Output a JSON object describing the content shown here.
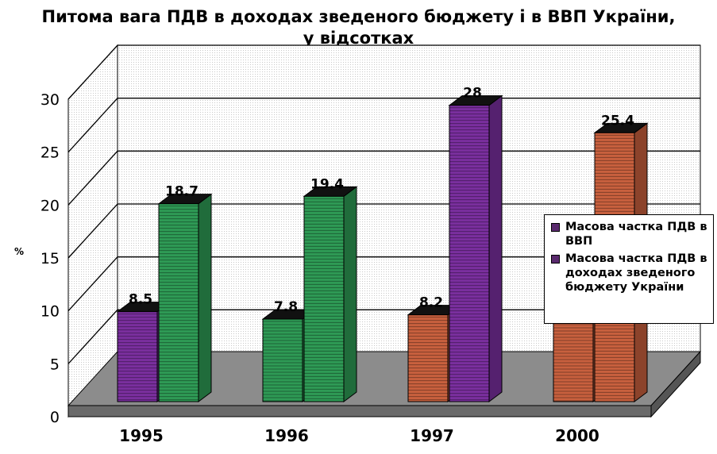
{
  "title_line1": "Питома вага ПДВ в доходах зведеного бюджету і в ВВП України,",
  "title_line2": "у відсотках",
  "chart_data": {
    "type": "bar",
    "categories": [
      "1995",
      "1996",
      "1997",
      "2000"
    ],
    "ylabel": "%",
    "ylim": [
      0,
      30
    ],
    "yticks": [
      0,
      5,
      10,
      15,
      20,
      25,
      30
    ],
    "grid": true,
    "legend_position": "right",
    "bars": [
      {
        "category": "1995",
        "value": 8.5,
        "label": "8.5",
        "color": "#7a2f9e"
      },
      {
        "category": "1995",
        "value": 18.7,
        "label": "18.7",
        "color": "#2e9a55"
      },
      {
        "category": "1996",
        "value": 7.8,
        "label": "7.8",
        "color": "#2e9a55"
      },
      {
        "category": "1996",
        "value": 19.4,
        "label": "19.4",
        "color": "#2e9a55"
      },
      {
        "category": "1997",
        "value": 8.2,
        "label": "8.2",
        "color": "#c8603e"
      },
      {
        "category": "1997",
        "value": 28,
        "label": "28",
        "color": "#7a2f9e"
      },
      {
        "category": "2000",
        "value": 7.5,
        "label": "",
        "color": "#c8603e"
      },
      {
        "category": "2000",
        "value": 25.4,
        "label": "25.4",
        "color": "#c8603e"
      }
    ],
    "legend": [
      {
        "label": "Масова частка ПДВ в ВВП",
        "color": "#5a2a6e"
      },
      {
        "label": "Масова частка ПДВ в доходах зведеного бюджету України",
        "color": "#5a2a6e"
      }
    ]
  }
}
